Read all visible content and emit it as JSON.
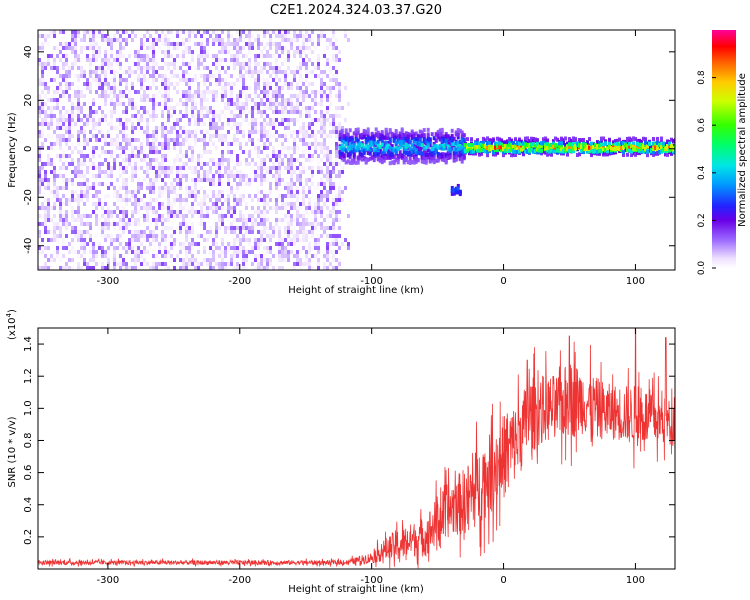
{
  "figure": {
    "title": "C2E1.2024.324.03.37.G20"
  },
  "chart_data": [
    {
      "type": "heatmap",
      "xlabel": "Height of straight line (km)",
      "ylabel": "Frequency (Hz)",
      "xlim": [
        -353,
        130
      ],
      "ylim": [
        -50,
        49
      ],
      "x_ticks": [
        -300,
        -200,
        -100,
        0,
        100
      ],
      "x_tick_labels": [
        "-300",
        "-200",
        "-100",
        "0",
        "100"
      ],
      "y_ticks": [
        -40,
        -20,
        0,
        20,
        40
      ],
      "y_tick_labels": [
        "-40",
        "-20",
        "0",
        "20",
        "40"
      ],
      "colorbar": {
        "label": "Normalized spectral amplitude",
        "range": [
          0,
          1
        ],
        "ticks": [
          0.0,
          0.2,
          0.4,
          0.6,
          0.8
        ],
        "tick_labels": [
          "0.0",
          "0.2",
          "0.4",
          "0.6",
          "0.8"
        ],
        "colormap": "rainbow"
      },
      "features": [
        {
          "x_range": [
            -353,
            -125
          ],
          "freq_range": [
            -50,
            49
          ],
          "amplitude": [
            0.0,
            0.15
          ],
          "description_free": true
        },
        {
          "x_range": [
            -125,
            -30
          ],
          "freq_center": 1,
          "freq_width": 10,
          "amplitude": [
            0.15,
            0.5
          ]
        },
        {
          "x_range": [
            -30,
            130
          ],
          "freq_center": 0.5,
          "freq_width": 4,
          "amplitude": [
            0.3,
            0.95
          ]
        },
        {
          "x_range": [
            -40,
            -33
          ],
          "freq_center": -17,
          "freq_width": 4,
          "amplitude": [
            0.2,
            0.35
          ]
        }
      ]
    },
    {
      "type": "line",
      "xlabel": "Height of straight line (km)",
      "ylabel": "SNR (10 * v/v)",
      "y_multiplier_label": "(x10",
      "y_multiplier_exp": "4",
      "y_multiplier_close": ")",
      "xlim": [
        -353,
        130
      ],
      "ylim": [
        0,
        1.5
      ],
      "x_ticks": [
        -300,
        -200,
        -100,
        0,
        100
      ],
      "x_tick_labels": [
        "-300",
        "-200",
        "-100",
        "0",
        "100"
      ],
      "y_ticks": [
        0.2,
        0.4,
        0.6,
        0.8,
        1.0,
        1.2,
        1.4
      ],
      "y_tick_labels": [
        "0.2",
        "0.4",
        "0.6",
        "0.8",
        "1.0",
        "1.2",
        "1.4"
      ],
      "series": [
        {
          "color": "#ee3333",
          "envelope": {
            "x": [
              -353,
              -120,
              -100,
              -90,
              -80,
              -70,
              -60,
              -50,
              -40,
              -30,
              -20,
              -10,
              0,
              10,
              20,
              30,
              40,
              50,
              60,
              70,
              80,
              90,
              100,
              110,
              120,
              130
            ],
            "mean": [
              0.04,
              0.04,
              0.07,
              0.12,
              0.15,
              0.18,
              0.2,
              0.3,
              0.38,
              0.42,
              0.5,
              0.6,
              0.7,
              0.8,
              0.95,
              1.0,
              1.0,
              1.05,
              1.05,
              1.0,
              0.98,
              0.97,
              0.95,
              0.95,
              0.92,
              0.92
            ],
            "spread": [
              0.02,
              0.02,
              0.05,
              0.1,
              0.15,
              0.15,
              0.18,
              0.22,
              0.25,
              0.3,
              0.35,
              0.35,
              0.38,
              0.35,
              0.35,
              0.3,
              0.3,
              0.35,
              0.3,
              0.28,
              0.25,
              0.25,
              0.28,
              0.25,
              0.22,
              0.18
            ]
          },
          "peaks": [
            [
              50,
              1.45
            ],
            [
              100,
              1.5
            ],
            [
              123,
              1.44
            ],
            [
              18,
              1.3
            ]
          ]
        }
      ]
    }
  ]
}
